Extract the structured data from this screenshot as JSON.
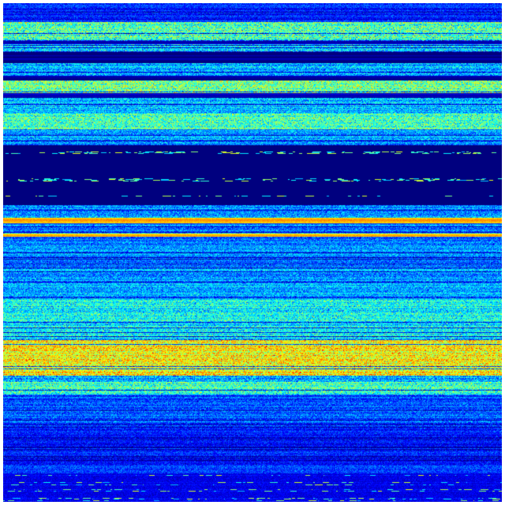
{
  "image": {
    "kind": "heatmap-matrix",
    "colormap": "jet",
    "colormap_stops": [
      "#00007f",
      "#0000ff",
      "#007fff",
      "#00ffff",
      "#7fff7f",
      "#ffff00",
      "#ff7f00",
      "#ff0000",
      "#7f0000"
    ],
    "background": "#ffffff",
    "base_color": "#00007f"
  }
}
